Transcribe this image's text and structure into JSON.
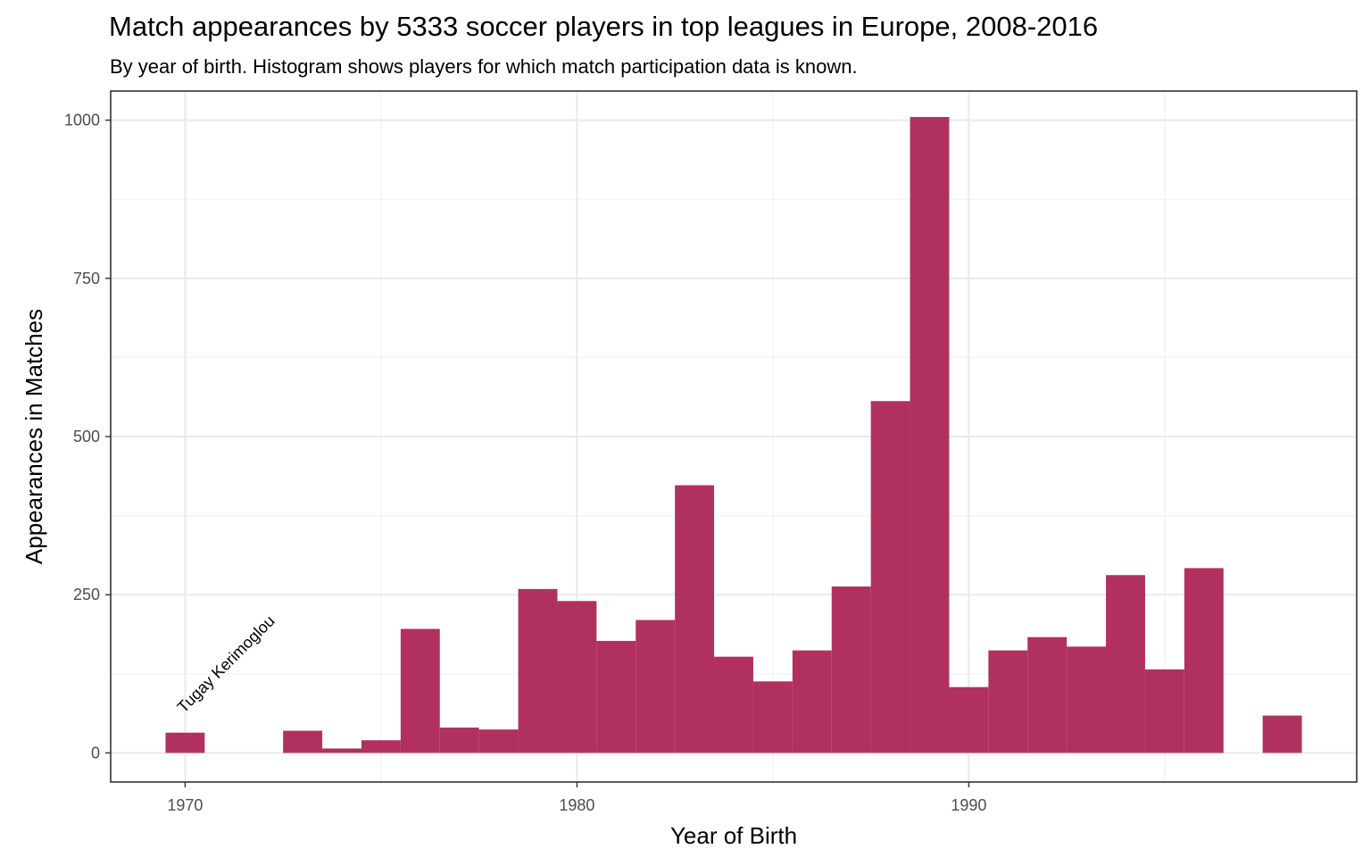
{
  "chart_data": {
    "type": "bar",
    "title": "Match appearances by 5333 soccer players in top leagues in Europe, 2008-2016",
    "subtitle": "By year of birth. Histogram shows players for which match participation data is known.",
    "xlabel": "Year of Birth",
    "ylabel": "Appearances in Matches",
    "xlim": [
      1968.1,
      1999.9
    ],
    "ylim": [
      -46,
      1046
    ],
    "xticks": [
      1970,
      1980,
      1990
    ],
    "yticks": [
      0,
      250,
      500,
      750,
      1000
    ],
    "bin_width": 1,
    "bar_color": "#B03060",
    "bins": [
      {
        "x": 1970,
        "value": 32
      },
      {
        "x": 1971,
        "value": 0
      },
      {
        "x": 1972,
        "value": 0
      },
      {
        "x": 1973,
        "value": 35
      },
      {
        "x": 1974,
        "value": 7
      },
      {
        "x": 1975,
        "value": 20
      },
      {
        "x": 1976,
        "value": 196
      },
      {
        "x": 1977,
        "value": 40
      },
      {
        "x": 1978,
        "value": 37
      },
      {
        "x": 1979,
        "value": 259
      },
      {
        "x": 1980,
        "value": 240
      },
      {
        "x": 1981,
        "value": 177
      },
      {
        "x": 1982,
        "value": 210
      },
      {
        "x": 1983,
        "value": 423
      },
      {
        "x": 1984,
        "value": 152
      },
      {
        "x": 1985,
        "value": 113
      },
      {
        "x": 1986,
        "value": 162
      },
      {
        "x": 1987,
        "value": 263
      },
      {
        "x": 1988,
        "value": 556
      },
      {
        "x": 1989,
        "value": 1005
      },
      {
        "x": 1990,
        "value": 104
      },
      {
        "x": 1991,
        "value": 162
      },
      {
        "x": 1992,
        "value": 183
      },
      {
        "x": 1993,
        "value": 168
      },
      {
        "x": 1994,
        "value": 281
      },
      {
        "x": 1995,
        "value": 132
      },
      {
        "x": 1996,
        "value": 292
      },
      {
        "x": 1997,
        "value": 0
      },
      {
        "x": 1998,
        "value": 59
      }
    ],
    "annotations": [
      {
        "text": "Tugay Kerimoglou",
        "x": 1970,
        "y": 60
      }
    ],
    "grid": true,
    "legend": "none"
  }
}
